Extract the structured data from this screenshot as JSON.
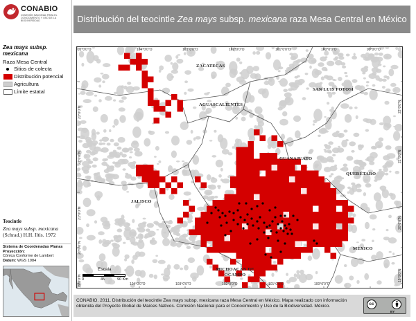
{
  "header": {
    "title_prefix": "Distribución del teocintle ",
    "title_italic_1": "Zea mays",
    "title_mid": " subsp. ",
    "title_italic_2": "mexicana",
    "title_suffix": " raza Mesa Central en México"
  },
  "logo": {
    "name": "CONABIO",
    "subtitle": "COMISIÓN NACIONAL PARA EL CONOCIMIENTO Y USO DE LA BIODIVERSIDAD",
    "icon": "conabio-logo-icon",
    "color": "#c1272d"
  },
  "legend": {
    "title_line1": "Zea mays subsp.",
    "title_line2": "mexicana",
    "race": "Raza Mesa Central",
    "items": [
      {
        "label": "Sitios de colecta",
        "kind": "dot",
        "color": "#000000"
      },
      {
        "label": "Distribución potencial",
        "kind": "fill",
        "color": "#d40000"
      },
      {
        "label": "Agricultura",
        "kind": "fill",
        "color": "#cfcfcf"
      },
      {
        "label": "Límite estatal",
        "kind": "fill",
        "color": "#ffffff"
      }
    ]
  },
  "teocintle": {
    "title": "Teocintle",
    "name": "Zea mays subsp. mexicana",
    "author": "(Schrad.) H.H. Iltis. 1972"
  },
  "coords": {
    "system_label": "Sistema de Coordenadas Planas",
    "projection_label": "Proyección:",
    "projection_value": "Cónica Conforme de Lambert",
    "datum_label": "Datum:",
    "datum_value": "WGS 1984"
  },
  "map": {
    "top_ticks": [
      "105°0'0\"O",
      "104°0'0\"O",
      "103°0'0\"O",
      "102°0'0\"O",
      "101°0'0\"O",
      "100°0'0\"O",
      "99°0'0\"O"
    ],
    "bottom_ticks": [
      "104°0'0\"O",
      "103°0'0\"O",
      "102°0'0\"O",
      "101°0'0\"O",
      "100°0'0\"O"
    ],
    "left_ticks": [
      "23°0'0\"N",
      "22°0'0\"N",
      "21°0'0\"N",
      "20°0'0\"N",
      "19°0'0\"N"
    ],
    "right_ticks": [
      "22°0'0\"N",
      "21°0'0\"N",
      "20°0'0\"N",
      "19°0'0\"N"
    ],
    "states": [
      {
        "name": "ZACATECAS"
      },
      {
        "name": "SAN LUIS POTOSÍ"
      },
      {
        "name": "AGUASCALIENTES"
      },
      {
        "name": "GUANAJUATO"
      },
      {
        "name": "QUERÉTARO"
      },
      {
        "name": "JALISCO"
      },
      {
        "name": "MÉXICO"
      },
      {
        "name": "MICHOACÁN DE OCAMPO"
      }
    ],
    "colors": {
      "distribution": "#d40000",
      "agriculture": "#cfcfcf",
      "background": "#ffffff",
      "boundary": "#555555",
      "sites": "#000000"
    },
    "scale": {
      "label": "Escala",
      "ticks": [
        "0",
        "45",
        "90 Km"
      ]
    }
  },
  "footer": {
    "text": "CONABIO. 2011. Distribución del teocintle Zea mays subsp. mexicana raza Mesa Central en México. Mapa realizado con información obtenida del Proyecto Global de Maíces Nativos. Comisión Nacional para el Conocimiento y Uso de la Biodiversidad. México.",
    "cc_text": "cc",
    "by_text": "BY",
    "icons": [
      "cc-icon",
      "by-icon"
    ]
  }
}
